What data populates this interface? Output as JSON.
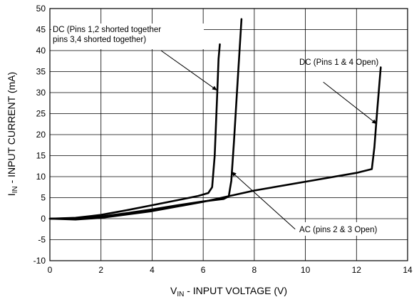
{
  "chart_data": {
    "type": "line",
    "xlabel": {
      "main": "V",
      "sub": "IN",
      "rest": " - INPUT VOLTAGE (V)"
    },
    "ylabel": {
      "main": "I",
      "sub": "IN",
      "rest": " - INPUT CURRENT (mA)"
    },
    "xlim": [
      0,
      14
    ],
    "ylim": [
      -10,
      50
    ],
    "xticks": [
      0,
      2,
      4,
      6,
      8,
      10,
      12,
      14
    ],
    "yticks": [
      -10,
      -5,
      0,
      5,
      10,
      15,
      20,
      25,
      30,
      35,
      40,
      45,
      50
    ],
    "grid": true,
    "series": [
      {
        "x": [
          0,
          1,
          2,
          3,
          4,
          5,
          5.8,
          6.2,
          6.35,
          6.45,
          6.55,
          6.6,
          6.65
        ],
        "y": [
          0,
          0.2,
          0.9,
          2.0,
          3.2,
          4.4,
          5.4,
          6.1,
          7.5,
          15,
          30,
          38,
          41.5
        ]
      },
      {
        "x": [
          0,
          1,
          2,
          3,
          4,
          5,
          6,
          6.8,
          7.0,
          7.1,
          7.2,
          7.35,
          7.5
        ],
        "y": [
          0,
          0.1,
          0.5,
          1.3,
          2.2,
          3.2,
          4.1,
          4.7,
          5.3,
          9,
          18,
          33,
          47.5
        ]
      },
      {
        "x": [
          0,
          1,
          2,
          4,
          6,
          8,
          10,
          12,
          12.6,
          12.7,
          12.8,
          12.95
        ],
        "y": [
          0,
          -0.2,
          0.2,
          1.8,
          4.0,
          6.7,
          8.8,
          10.9,
          11.8,
          17,
          25,
          36
        ]
      }
    ],
    "annotations": [
      {
        "lines": [
          "DC (Pins 1,2 shorted together",
          "pins 3,4 shorted together)"
        ],
        "target": [
          6.55,
          30.5
        ],
        "from": [
          4.35,
          40
        ]
      },
      {
        "lines": [
          "DC (Pins 1 & 4 Open)"
        ],
        "target": [
          12.8,
          22.5
        ],
        "from": [
          10.7,
          32.5
        ]
      },
      {
        "lines": [
          "AC (pins 2 & 3 Open)"
        ],
        "target": [
          7.1,
          11.2
        ],
        "from": [
          9.6,
          -2.5
        ]
      }
    ]
  }
}
